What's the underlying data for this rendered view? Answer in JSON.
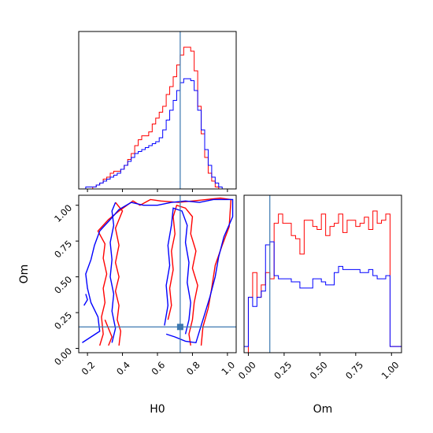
{
  "chart_data": {
    "type": "corner",
    "parameters": [
      "H0",
      "Om"
    ],
    "truths": {
      "H0": 0.73,
      "Om": 0.15
    },
    "colors": {
      "series_a": "#ff0000",
      "series_b": "#0000ff",
      "truth": "#3b78b0"
    },
    "xlabel_bottom_left": "H0",
    "ylabel_bottom_left": "Om",
    "xlabel_bottom_right": "Om",
    "x_range_H0": [
      0.15,
      1.05
    ],
    "y_range_Om": [
      -0.03,
      1.07
    ],
    "x_range_Om": [
      -0.03,
      1.07
    ],
    "ticks_H0": [
      "0.2",
      "0.4",
      "0.6",
      "0.8",
      "1.0"
    ],
    "ticks_Om": [
      "0.00",
      "0.25",
      "0.50",
      "0.75",
      "1.00"
    ],
    "hist_H0": {
      "bin_edges": [
        0.15,
        0.17,
        0.19,
        0.21,
        0.23,
        0.25,
        0.27,
        0.29,
        0.31,
        0.33,
        0.35,
        0.37,
        0.39,
        0.41,
        0.43,
        0.45,
        0.47,
        0.49,
        0.51,
        0.53,
        0.55,
        0.57,
        0.59,
        0.61,
        0.63,
        0.65,
        0.67,
        0.69,
        0.71,
        0.73,
        0.75,
        0.77,
        0.79,
        0.81,
        0.83,
        0.85,
        0.87,
        0.89,
        0.91,
        0.93,
        0.95,
        0.97,
        0.99,
        1.01,
        1.03,
        1.05
      ],
      "series": [
        {
          "values": [
            0,
            0,
            0,
            0,
            1,
            2,
            3,
            5,
            6,
            8,
            9,
            9,
            10,
            12,
            15,
            18,
            22,
            25,
            27,
            27,
            29,
            33,
            36,
            39,
            42,
            48,
            52,
            57,
            63,
            68,
            72,
            72,
            70,
            60,
            42,
            28,
            16,
            8,
            4,
            1,
            0,
            0,
            0,
            0,
            0
          ]
        },
        {
          "values": [
            0,
            0,
            1,
            1,
            1,
            2,
            3,
            4,
            5,
            6,
            7,
            8,
            10,
            12,
            14,
            16,
            18,
            19,
            20,
            21,
            22,
            23,
            24,
            26,
            30,
            35,
            40,
            45,
            50,
            54,
            56,
            56,
            55,
            50,
            40,
            30,
            20,
            12,
            6,
            3,
            1,
            0,
            0,
            0,
            0
          ]
        }
      ]
    },
    "hist_Om": {
      "bin_edges": [
        -0.03,
        0.0,
        0.03,
        0.06,
        0.09,
        0.12,
        0.15,
        0.18,
        0.21,
        0.24,
        0.27,
        0.3,
        0.33,
        0.36,
        0.39,
        0.42,
        0.45,
        0.48,
        0.51,
        0.54,
        0.57,
        0.6,
        0.63,
        0.66,
        0.69,
        0.72,
        0.75,
        0.78,
        0.81,
        0.84,
        0.87,
        0.9,
        0.93,
        0.96,
        0.99,
        1.02,
        1.05,
        1.07
      ],
      "series": [
        {
          "values": [
            0,
            18,
            26,
            18,
            22,
            26,
            24,
            42,
            45,
            42,
            42,
            38,
            37,
            32,
            43,
            43,
            41,
            40,
            45,
            38,
            41,
            42,
            45,
            39,
            43,
            43,
            41,
            42,
            44,
            40,
            46,
            42,
            43,
            45,
            2,
            2,
            2
          ]
        },
        {
          "values": [
            2,
            18,
            15,
            18,
            20,
            35,
            36,
            25,
            24,
            24,
            24,
            23,
            23,
            21,
            21,
            21,
            24,
            24,
            23,
            22,
            22,
            26,
            28,
            27,
            27,
            27,
            27,
            26,
            26,
            27,
            25,
            24,
            24,
            25,
            2,
            2,
            2
          ]
        }
      ]
    },
    "contours": [
      {
        "series": 0,
        "levels": [
          {
            "points": [
              [
                0.27,
                0.02
              ],
              [
                0.29,
                0.1
              ],
              [
                0.28,
                0.22
              ],
              [
                0.3,
                0.32
              ],
              [
                0.29,
                0.42
              ],
              [
                0.31,
                0.52
              ],
              [
                0.29,
                0.63
              ],
              [
                0.3,
                0.73
              ],
              [
                0.26,
                0.82
              ],
              [
                0.32,
                0.9
              ],
              [
                0.38,
                0.96
              ],
              [
                0.46,
                1.03
              ],
              [
                0.5,
                1.0
              ],
              [
                0.56,
                1.04
              ],
              [
                0.62,
                1.03
              ],
              [
                0.72,
                1.02
              ],
              [
                0.8,
                1.03
              ],
              [
                0.88,
                1.04
              ],
              [
                0.96,
                1.05
              ],
              [
                1.02,
                1.04
              ],
              [
                1.01,
                0.85
              ],
              [
                0.97,
                0.72
              ],
              [
                0.93,
                0.58
              ],
              [
                0.91,
                0.42
              ],
              [
                0.89,
                0.28
              ],
              [
                0.86,
                0.15
              ],
              [
                0.85,
                0.02
              ]
            ]
          },
          {
            "points": [
              [
                0.38,
                0.02
              ],
              [
                0.39,
                0.12
              ],
              [
                0.37,
                0.2
              ],
              [
                0.38,
                0.3
              ],
              [
                0.36,
                0.4
              ],
              [
                0.38,
                0.5
              ],
              [
                0.36,
                0.6
              ],
              [
                0.38,
                0.72
              ],
              [
                0.36,
                0.84
              ],
              [
                0.4,
                0.96
              ],
              [
                0.36,
                1.02
              ]
            ]
          },
          {
            "points": [
              [
                0.66,
                0.2
              ],
              [
                0.68,
                0.3
              ],
              [
                0.67,
                0.42
              ],
              [
                0.69,
                0.55
              ],
              [
                0.68,
                0.68
              ],
              [
                0.7,
                0.8
              ],
              [
                0.69,
                0.92
              ],
              [
                0.71,
                1.0
              ],
              [
                0.76,
                0.98
              ],
              [
                0.8,
                0.92
              ],
              [
                0.79,
                0.8
              ],
              [
                0.82,
                0.68
              ],
              [
                0.8,
                0.56
              ],
              [
                0.83,
                0.44
              ],
              [
                0.81,
                0.32
              ],
              [
                0.8,
                0.2
              ],
              [
                0.78,
                0.1
              ],
              [
                0.79,
                0.02
              ]
            ]
          },
          {
            "points": [
              [
                0.32,
                0.02
              ],
              [
                0.34,
                0.08
              ],
              [
                0.32,
                0.14
              ],
              [
                0.3,
                0.2
              ]
            ]
          }
        ]
      },
      {
        "series": 1,
        "levels": [
          {
            "points": [
              [
                0.17,
                0.04
              ],
              [
                0.22,
                0.08
              ],
              [
                0.27,
                0.12
              ],
              [
                0.26,
                0.22
              ],
              [
                0.22,
                0.32
              ],
              [
                0.2,
                0.42
              ],
              [
                0.19,
                0.52
              ],
              [
                0.22,
                0.62
              ],
              [
                0.24,
                0.72
              ],
              [
                0.27,
                0.82
              ],
              [
                0.33,
                0.9
              ],
              [
                0.38,
                0.97
              ],
              [
                0.45,
                1.02
              ],
              [
                0.52,
                1.0
              ],
              [
                0.6,
                1.0
              ],
              [
                0.68,
                1.02
              ],
              [
                0.76,
                1.03
              ],
              [
                0.84,
                1.02
              ],
              [
                0.92,
                1.04
              ],
              [
                1.03,
                1.04
              ],
              [
                1.03,
                0.92
              ],
              [
                0.98,
                0.78
              ],
              [
                0.95,
                0.64
              ],
              [
                0.93,
                0.5
              ],
              [
                0.9,
                0.36
              ],
              [
                0.87,
                0.24
              ],
              [
                0.84,
                0.12
              ],
              [
                0.82,
                0.04
              ],
              [
                0.76,
                0.05
              ],
              [
                0.7,
                0.08
              ],
              [
                0.65,
                0.1
              ]
            ]
          },
          {
            "points": [
              [
                0.34,
                0.04
              ],
              [
                0.36,
                0.14
              ],
              [
                0.34,
                0.26
              ],
              [
                0.35,
                0.38
              ],
              [
                0.33,
                0.5
              ],
              [
                0.34,
                0.62
              ],
              [
                0.33,
                0.74
              ],
              [
                0.35,
                0.86
              ],
              [
                0.34,
                0.96
              ],
              [
                0.36,
                1.02
              ]
            ]
          },
          {
            "points": [
              [
                0.64,
                0.16
              ],
              [
                0.66,
                0.3
              ],
              [
                0.65,
                0.44
              ],
              [
                0.67,
                0.58
              ],
              [
                0.66,
                0.72
              ],
              [
                0.68,
                0.86
              ],
              [
                0.69,
                0.98
              ],
              [
                0.74,
                0.96
              ],
              [
                0.77,
                0.86
              ],
              [
                0.76,
                0.74
              ],
              [
                0.78,
                0.6
              ],
              [
                0.77,
                0.46
              ],
              [
                0.79,
                0.32
              ],
              [
                0.78,
                0.2
              ],
              [
                0.76,
                0.1
              ]
            ]
          },
          {
            "points": [
              [
                0.18,
                0.3
              ],
              [
                0.2,
                0.34
              ],
              [
                0.19,
                0.38
              ]
            ]
          }
        ]
      }
    ]
  }
}
